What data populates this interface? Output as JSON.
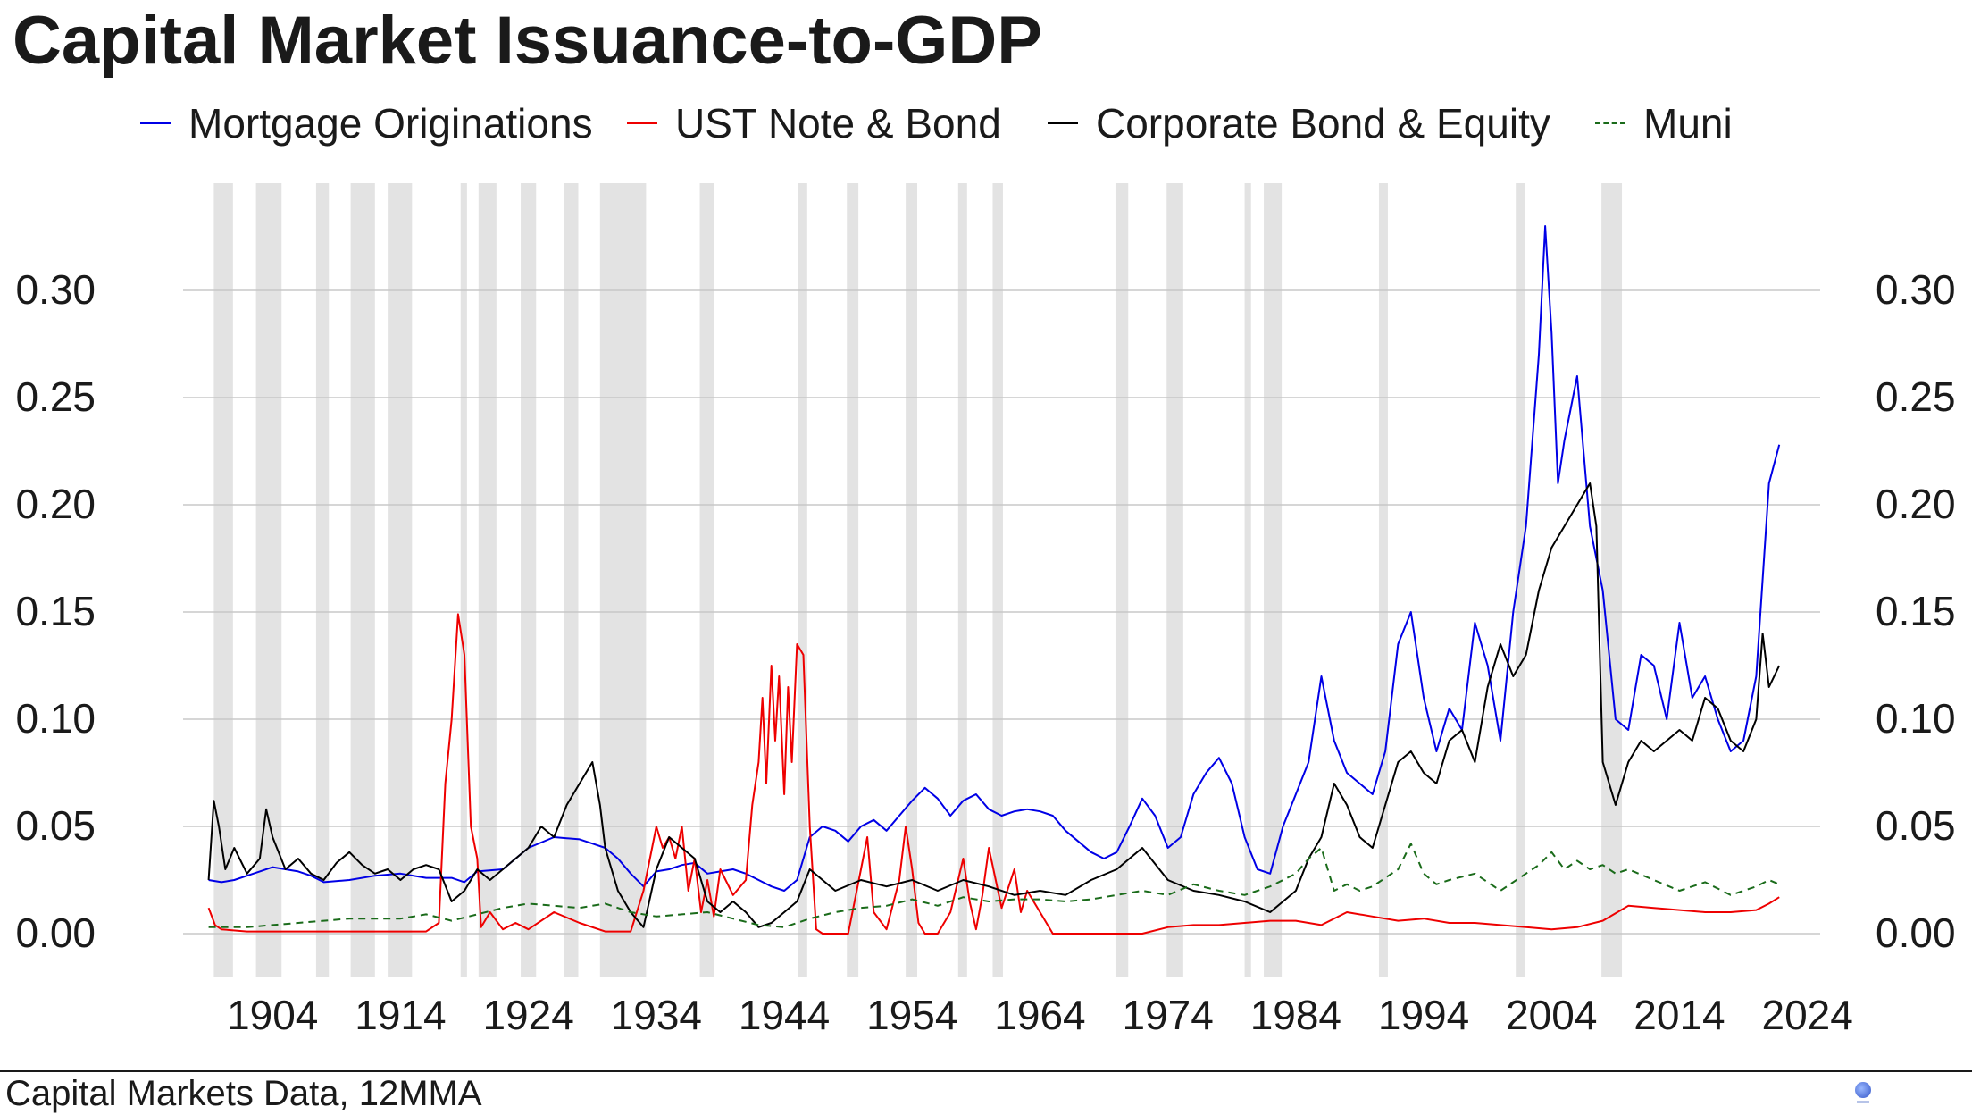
{
  "page": {
    "title": "Capital Market Issuance-to-GDP",
    "footer_text": "Capital Markets Data, 12MMA",
    "logo_icon": "globe-logo-icon"
  },
  "legend": [
    {
      "label": "Mortgage Originations",
      "color": "#0000e6",
      "style": "solid"
    },
    {
      "label": "UST Note & Bond",
      "color": "#ee0000",
      "style": "solid"
    },
    {
      "label": "Corporate Bond & Equity",
      "color": "#000000",
      "style": "solid"
    },
    {
      "label": "Muni",
      "color": "#1a6b1a",
      "style": "dashed"
    }
  ],
  "chart_data": {
    "type": "line",
    "title": "Capital Market Issuance-to-GDP",
    "xlabel": "",
    "ylabel": "",
    "xlim": [
      1897,
      2025
    ],
    "ylim": [
      -0.02,
      0.35
    ],
    "x_ticks": [
      1904,
      1914,
      1924,
      1934,
      1944,
      1954,
      1964,
      1974,
      1984,
      1994,
      2004,
      2014,
      2024
    ],
    "y_ticks": [
      "0.00",
      "0.05",
      "0.10",
      "0.15",
      "0.20",
      "0.25",
      "0.30"
    ],
    "y_axis_both_sides": true,
    "grid": "horizontal",
    "legend_position": "top",
    "recession_color": "#e3e3e3",
    "recessions": [
      [
        1899.4,
        1900.9
      ],
      [
        1902.7,
        1904.7
      ],
      [
        1907.4,
        1908.4
      ],
      [
        1910.1,
        1912.0
      ],
      [
        1913.0,
        1914.9
      ],
      [
        1918.7,
        1919.2
      ],
      [
        1920.1,
        1921.5
      ],
      [
        1923.4,
        1924.6
      ],
      [
        1926.8,
        1927.9
      ],
      [
        1929.6,
        1933.2
      ],
      [
        1937.4,
        1938.5
      ],
      [
        1945.1,
        1945.8
      ],
      [
        1948.9,
        1949.8
      ],
      [
        1953.5,
        1954.4
      ],
      [
        1957.6,
        1958.3
      ],
      [
        1960.3,
        1961.1
      ],
      [
        1969.9,
        1970.9
      ],
      [
        1973.9,
        1975.2
      ],
      [
        1980.0,
        1980.5
      ],
      [
        1981.5,
        1982.9
      ],
      [
        1990.5,
        1991.2
      ],
      [
        2001.2,
        2001.9
      ],
      [
        2007.9,
        2009.5
      ]
    ],
    "series": [
      {
        "name": "Mortgage Originations",
        "color": "#0000e6",
        "dash": "",
        "x": [
          1899,
          1900,
          1901,
          1902,
          1903,
          1904,
          1905,
          1906,
          1907,
          1908,
          1910,
          1912,
          1914,
          1916,
          1918,
          1919,
          1920,
          1922,
          1924,
          1926,
          1928,
          1929,
          1930,
          1931,
          1932,
          1933,
          1934,
          1935,
          1936,
          1937,
          1938,
          1939,
          1940,
          1941,
          1942,
          1943,
          1944,
          1945,
          1946,
          1947,
          1948,
          1949,
          1950,
          1951,
          1952,
          1953,
          1954,
          1955,
          1956,
          1957,
          1958,
          1959,
          1960,
          1961,
          1962,
          1963,
          1964,
          1965,
          1966,
          1967,
          1968,
          1969,
          1970,
          1971,
          1972,
          1973,
          1974,
          1975,
          1976,
          1977,
          1978,
          1979,
          1980,
          1981,
          1982,
          1983,
          1984,
          1985,
          1986,
          1987,
          1988,
          1989,
          1990,
          1991,
          1992,
          1993,
          1994,
          1995,
          1996,
          1997,
          1998,
          1999,
          2000,
          2001,
          2002,
          2003,
          2003.5,
          2004,
          2004.5,
          2005,
          2006,
          2007,
          2008,
          2009,
          2010,
          2011,
          2012,
          2013,
          2014,
          2015,
          2016,
          2017,
          2018,
          2019,
          2020,
          2021,
          2021.8
        ],
        "y": [
          0.025,
          0.024,
          0.025,
          0.027,
          0.029,
          0.031,
          0.03,
          0.029,
          0.027,
          0.024,
          0.025,
          0.027,
          0.028,
          0.026,
          0.026,
          0.024,
          0.029,
          0.03,
          0.04,
          0.045,
          0.044,
          0.042,
          0.04,
          0.035,
          0.028,
          0.022,
          0.029,
          0.03,
          0.032,
          0.033,
          0.028,
          0.029,
          0.03,
          0.028,
          0.025,
          0.022,
          0.02,
          0.025,
          0.045,
          0.05,
          0.048,
          0.043,
          0.05,
          0.053,
          0.048,
          0.055,
          0.062,
          0.068,
          0.063,
          0.055,
          0.062,
          0.065,
          0.058,
          0.055,
          0.057,
          0.058,
          0.057,
          0.055,
          0.048,
          0.043,
          0.038,
          0.035,
          0.038,
          0.05,
          0.063,
          0.055,
          0.04,
          0.045,
          0.065,
          0.075,
          0.082,
          0.07,
          0.045,
          0.03,
          0.028,
          0.05,
          0.065,
          0.08,
          0.12,
          0.09,
          0.075,
          0.07,
          0.065,
          0.085,
          0.135,
          0.15,
          0.11,
          0.085,
          0.105,
          0.095,
          0.145,
          0.125,
          0.09,
          0.15,
          0.19,
          0.27,
          0.33,
          0.28,
          0.21,
          0.23,
          0.26,
          0.19,
          0.16,
          0.1,
          0.095,
          0.13,
          0.125,
          0.1,
          0.145,
          0.11,
          0.12,
          0.1,
          0.085,
          0.09,
          0.12,
          0.21,
          0.228
        ]
      },
      {
        "name": "UST Note & Bond",
        "color": "#ee0000",
        "dash": "",
        "x": [
          1899,
          1899.5,
          1900,
          1902,
          1904,
          1906,
          1908,
          1910,
          1912,
          1914,
          1916,
          1917,
          1917.5,
          1918,
          1918.5,
          1919,
          1919.5,
          1920,
          1920.3,
          1921,
          1922,
          1923,
          1924,
          1926,
          1928,
          1930,
          1932,
          1933,
          1934,
          1934.5,
          1935,
          1935.5,
          1936,
          1936.5,
          1937,
          1937.5,
          1938,
          1938.5,
          1939,
          1940,
          1941,
          1941.5,
          1942,
          1942.3,
          1942.6,
          1943,
          1943.3,
          1943.6,
          1944,
          1944.3,
          1944.6,
          1945,
          1945.5,
          1946,
          1946.5,
          1947,
          1948,
          1948.5,
          1949,
          1950,
          1950.5,
          1951,
          1952,
          1953,
          1953.5,
          1954,
          1954.5,
          1955,
          1956,
          1957,
          1958,
          1958.5,
          1959,
          1959.5,
          1960,
          1961,
          1962,
          1962.5,
          1963,
          1963.5,
          1964,
          1965,
          1966,
          1968,
          1970,
          1972,
          1974,
          1976,
          1978,
          1980,
          1982,
          1984,
          1986,
          1988,
          1990,
          1992,
          1994,
          1996,
          1998,
          2000,
          2002,
          2004,
          2006,
          2008,
          2010,
          2012,
          2014,
          2016,
          2018,
          2020,
          2021,
          2021.8
        ],
        "y": [
          0.012,
          0.004,
          0.002,
          0.001,
          0.001,
          0.001,
          0.001,
          0.001,
          0.001,
          0.001,
          0.001,
          0.005,
          0.07,
          0.1,
          0.149,
          0.13,
          0.05,
          0.035,
          0.003,
          0.01,
          0.002,
          0.005,
          0.002,
          0.01,
          0.005,
          0.001,
          0.001,
          0.02,
          0.05,
          0.04,
          0.045,
          0.035,
          0.05,
          0.02,
          0.035,
          0.01,
          0.025,
          0.008,
          0.03,
          0.018,
          0.025,
          0.06,
          0.08,
          0.11,
          0.07,
          0.125,
          0.09,
          0.12,
          0.065,
          0.115,
          0.08,
          0.135,
          0.13,
          0.05,
          0.002,
          0.0,
          0.0,
          0.0,
          0.0,
          0.03,
          0.045,
          0.01,
          0.002,
          0.025,
          0.05,
          0.03,
          0.005,
          0.0,
          0.0,
          0.01,
          0.035,
          0.015,
          0.002,
          0.018,
          0.04,
          0.012,
          0.03,
          0.01,
          0.02,
          0.015,
          0.01,
          0.0,
          0.0,
          0.0,
          0.0,
          0.0,
          0.003,
          0.004,
          0.004,
          0.005,
          0.006,
          0.006,
          0.004,
          0.01,
          0.008,
          0.006,
          0.007,
          0.005,
          0.005,
          0.004,
          0.003,
          0.002,
          0.003,
          0.006,
          0.013,
          0.012,
          0.011,
          0.01,
          0.01,
          0.011,
          0.014,
          0.017
        ]
      },
      {
        "name": "Corporate Bond & Equity",
        "color": "#000000",
        "dash": "",
        "x": [
          1899,
          1899.4,
          1899.8,
          1900.3,
          1901,
          1902,
          1903,
          1903.5,
          1904,
          1905,
          1906,
          1907,
          1908,
          1909,
          1910,
          1911,
          1912,
          1913,
          1914,
          1915,
          1916,
          1917,
          1918,
          1919,
          1920,
          1921,
          1922,
          1923,
          1924,
          1925,
          1926,
          1927,
          1928,
          1929,
          1929.6,
          1930,
          1931,
          1932,
          1933,
          1934,
          1935,
          1936,
          1937,
          1938,
          1939,
          1940,
          1941,
          1942,
          1943,
          1944,
          1945,
          1946,
          1947,
          1948,
          1950,
          1952,
          1954,
          1956,
          1958,
          1960,
          1962,
          1964,
          1966,
          1968,
          1970,
          1972,
          1974,
          1976,
          1978,
          1980,
          1982,
          1984,
          1985,
          1986,
          1987,
          1988,
          1989,
          1990,
          1991,
          1992,
          1993,
          1994,
          1995,
          1996,
          1997,
          1998,
          1999,
          2000,
          2001,
          2002,
          2003,
          2004,
          2005,
          2006,
          2007,
          2007.5,
          2008,
          2009,
          2010,
          2011,
          2012,
          2013,
          2014,
          2015,
          2016,
          2017,
          2018,
          2019,
          2020,
          2020.5,
          2021,
          2021.8
        ],
        "y": [
          0.025,
          0.062,
          0.05,
          0.03,
          0.04,
          0.028,
          0.035,
          0.058,
          0.045,
          0.03,
          0.035,
          0.028,
          0.025,
          0.033,
          0.038,
          0.032,
          0.028,
          0.03,
          0.025,
          0.03,
          0.032,
          0.03,
          0.015,
          0.02,
          0.03,
          0.025,
          0.03,
          0.035,
          0.04,
          0.05,
          0.045,
          0.06,
          0.07,
          0.08,
          0.06,
          0.04,
          0.02,
          0.01,
          0.003,
          0.03,
          0.045,
          0.04,
          0.035,
          0.015,
          0.01,
          0.015,
          0.01,
          0.003,
          0.005,
          0.01,
          0.015,
          0.03,
          0.025,
          0.02,
          0.025,
          0.022,
          0.025,
          0.02,
          0.025,
          0.022,
          0.018,
          0.02,
          0.018,
          0.025,
          0.03,
          0.04,
          0.025,
          0.02,
          0.018,
          0.015,
          0.01,
          0.02,
          0.035,
          0.045,
          0.07,
          0.06,
          0.045,
          0.04,
          0.06,
          0.08,
          0.085,
          0.075,
          0.07,
          0.09,
          0.095,
          0.08,
          0.115,
          0.135,
          0.12,
          0.13,
          0.16,
          0.18,
          0.19,
          0.2,
          0.21,
          0.19,
          0.08,
          0.06,
          0.08,
          0.09,
          0.085,
          0.09,
          0.095,
          0.09,
          0.11,
          0.105,
          0.09,
          0.085,
          0.1,
          0.14,
          0.115,
          0.125
        ]
      },
      {
        "name": "Muni",
        "color": "#1a6b1a",
        "dash": "8 6",
        "x": [
          1899,
          1902,
          1906,
          1910,
          1914,
          1916,
          1918,
          1920,
          1922,
          1924,
          1926,
          1928,
          1930,
          1932,
          1934,
          1936,
          1938,
          1940,
          1942,
          1944,
          1946,
          1948,
          1950,
          1952,
          1954,
          1956,
          1958,
          1960,
          1962,
          1964,
          1966,
          1968,
          1970,
          1972,
          1974,
          1976,
          1978,
          1980,
          1982,
          1984,
          1985,
          1986,
          1987,
          1988,
          1989,
          1990,
          1992,
          1993,
          1994,
          1995,
          1996,
          1998,
          2000,
          2002,
          2003,
          2004,
          2005,
          2006,
          2007,
          2008,
          2009,
          2010,
          2012,
          2014,
          2016,
          2018,
          2020,
          2021,
          2021.8
        ],
        "y": [
          0.003,
          0.003,
          0.005,
          0.007,
          0.007,
          0.009,
          0.006,
          0.009,
          0.012,
          0.014,
          0.013,
          0.012,
          0.014,
          0.01,
          0.008,
          0.009,
          0.01,
          0.007,
          0.004,
          0.003,
          0.007,
          0.01,
          0.012,
          0.013,
          0.016,
          0.013,
          0.017,
          0.015,
          0.016,
          0.016,
          0.015,
          0.016,
          0.018,
          0.02,
          0.018,
          0.023,
          0.02,
          0.018,
          0.022,
          0.028,
          0.035,
          0.04,
          0.02,
          0.023,
          0.02,
          0.022,
          0.03,
          0.042,
          0.028,
          0.023,
          0.025,
          0.028,
          0.02,
          0.028,
          0.032,
          0.038,
          0.03,
          0.034,
          0.03,
          0.032,
          0.028,
          0.03,
          0.025,
          0.02,
          0.024,
          0.018,
          0.022,
          0.025,
          0.023
        ]
      }
    ]
  }
}
